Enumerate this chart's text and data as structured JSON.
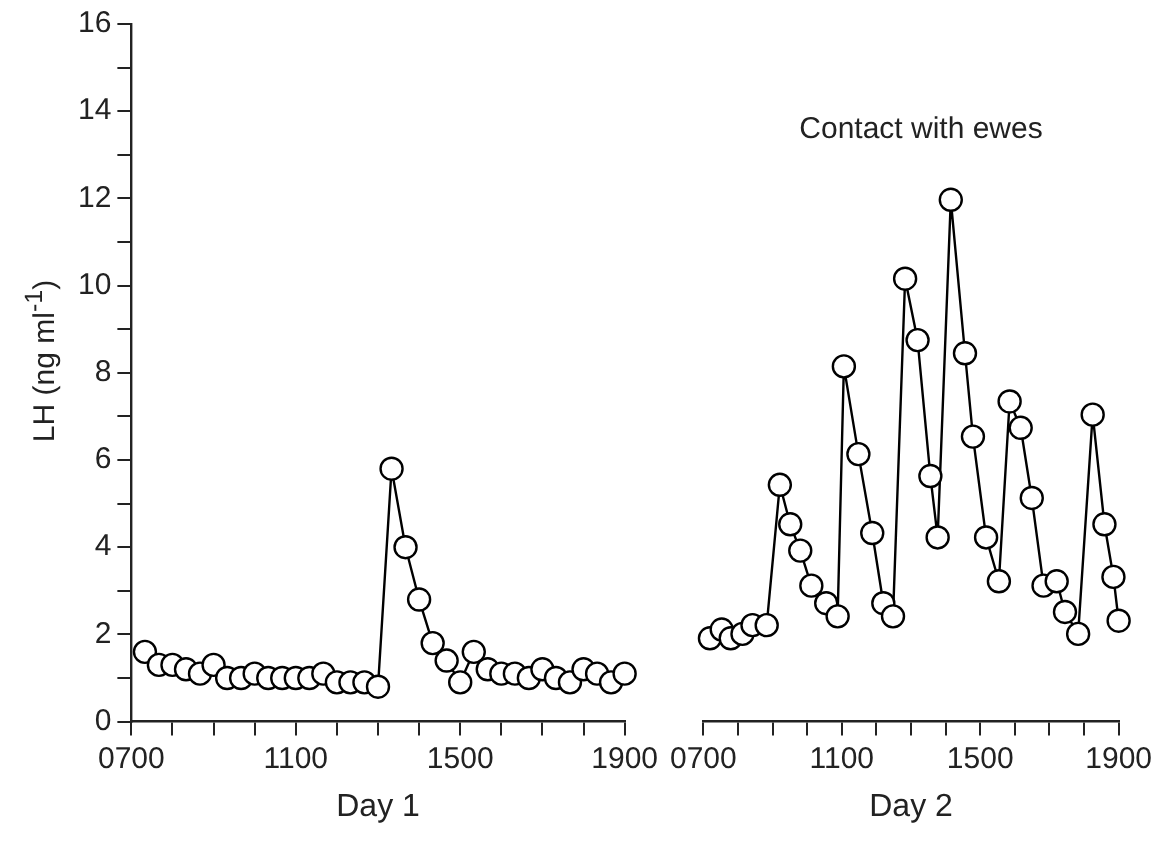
{
  "chart_data": [
    {
      "type": "line",
      "ylabel": "LH (ng ml$^{-1}$)",
      "xlabel": "Day 1",
      "marker": "circle",
      "line_style": "solid",
      "grid": false,
      "legend": false,
      "xlim": [
        700,
        1900
      ],
      "xticks": [
        {
          "value": 700,
          "label": "0700"
        },
        {
          "value": 800,
          "label": null
        },
        {
          "value": 900,
          "label": null
        },
        {
          "value": 1000,
          "label": null
        },
        1100,
        {
          "value": 1200,
          "label": null
        },
        {
          "value": 1300,
          "label": null
        },
        {
          "value": 1400,
          "label": null
        },
        1500,
        {
          "value": 1600,
          "label": null
        },
        {
          "value": 1700,
          "label": null
        },
        {
          "value": 1800,
          "label": null
        },
        1900
      ],
      "ylim": [
        0,
        16
      ],
      "yticks": [
        0,
        {
          "value": 1,
          "label": null
        },
        2,
        {
          "value": 3,
          "label": null
        },
        4,
        {
          "value": 5,
          "label": null
        },
        6,
        {
          "value": 7,
          "label": null
        },
        8,
        {
          "value": 9,
          "label": null
        },
        10,
        {
          "value": 11,
          "label": null
        },
        12,
        {
          "value": 13,
          "label": null
        },
        14,
        {
          "value": 15,
          "label": null
        },
        16
      ],
      "x": [
        733,
        767,
        800,
        833,
        867,
        900,
        933,
        967,
        1000,
        1033,
        1067,
        1100,
        1133,
        1167,
        1200,
        1233,
        1267,
        1300,
        1333,
        1367,
        1400,
        1433,
        1467,
        1500,
        1533,
        1567,
        1600,
        1633,
        1667,
        1700,
        1733,
        1767,
        1800,
        1833,
        1867,
        1900
      ],
      "series": [
        {
          "color": "#000000",
          "values": [
            1.6,
            1.3,
            1.3,
            1.2,
            1.1,
            1.3,
            1.0,
            1.0,
            1.1,
            1.0,
            1.0,
            1.0,
            1.0,
            1.1,
            0.9,
            0.9,
            0.9,
            0.8,
            5.8,
            4.0,
            2.8,
            1.8,
            1.4,
            0.9,
            1.6,
            1.2,
            1.1,
            1.1,
            1.0,
            1.2,
            1.0,
            0.9,
            1.2,
            1.1,
            0.9,
            1.1
          ]
        }
      ]
    },
    {
      "type": "line",
      "xlabel": "Day 2",
      "marker": "circle",
      "line_style": "solid",
      "grid": false,
      "legend": false,
      "tick_labels": "x",
      "annotations": [
        "Contact with ewes"
      ],
      "xlim": [
        700,
        1900
      ],
      "xticks": [
        {
          "value": 700,
          "label": "0700"
        },
        {
          "value": 800,
          "label": null
        },
        {
          "value": 900,
          "label": null
        },
        {
          "value": 1000,
          "label": null
        },
        1100,
        {
          "value": 1200,
          "label": null
        },
        {
          "value": 1300,
          "label": null
        },
        {
          "value": 1400,
          "label": null
        },
        1500,
        {
          "value": 1600,
          "label": null
        },
        {
          "value": 1700,
          "label": null
        },
        {
          "value": 1800,
          "label": null
        },
        1900
      ],
      "ylim": [
        0,
        16
      ],
      "x": [
        719,
        753,
        779,
        813,
        842,
        883,
        921,
        951,
        980,
        1012,
        1055,
        1088,
        1106,
        1148,
        1188,
        1220,
        1248,
        1283,
        1319,
        1356,
        1377,
        1415,
        1456,
        1479,
        1517,
        1554,
        1585,
        1617,
        1649,
        1683,
        1721,
        1745,
        1783,
        1825,
        1859,
        1885,
        1900
      ],
      "series": [
        {
          "color": "#000000",
          "values": [
            1.9,
            2.1,
            1.9,
            2.0,
            2.2,
            2.2,
            5.4,
            4.5,
            3.9,
            3.1,
            2.7,
            2.4,
            8.1,
            6.1,
            4.3,
            2.7,
            2.4,
            10.1,
            8.7,
            5.6,
            4.2,
            11.9,
            8.4,
            6.5,
            4.2,
            3.2,
            7.3,
            6.7,
            5.1,
            3.1,
            3.2,
            2.5,
            2.0,
            7.0,
            4.5,
            3.3,
            2.3
          ]
        }
      ]
    }
  ]
}
